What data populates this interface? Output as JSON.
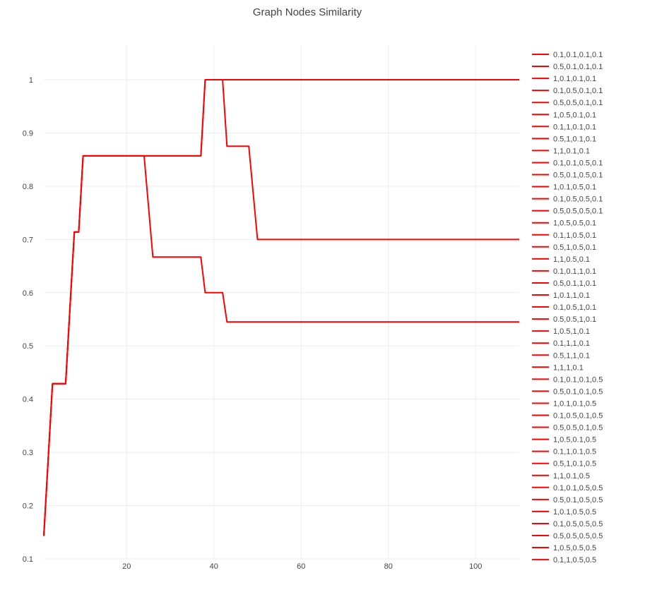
{
  "chart_data": {
    "type": "line",
    "title": "Graph Nodes Similarity",
    "xlabel": "",
    "ylabel": "",
    "xlim": [
      1,
      110
    ],
    "ylim": [
      0.1,
      1.065
    ],
    "x_ticks": [
      20,
      40,
      60,
      80,
      100
    ],
    "y_ticks": [
      0.1,
      0.2,
      0.3,
      0.4,
      0.5,
      0.6,
      0.7,
      0.8,
      0.9,
      1
    ],
    "y_tick_labels": [
      "0.1",
      "0.2",
      "0.3",
      "0.4",
      "0.5",
      "0.6",
      "0.7",
      "0.8",
      "0.9",
      "1"
    ],
    "grid": true,
    "legend_position": "right",
    "line_color": "#ff0000",
    "series": [
      {
        "name": "0.1,0.1,0.1,0.1",
        "points": [
          [
            1,
            0.143
          ],
          [
            3,
            0.429
          ],
          [
            6,
            0.429
          ],
          [
            7,
            0.571
          ],
          [
            8,
            0.714
          ],
          [
            9,
            0.714
          ],
          [
            10,
            0.857
          ],
          [
            37,
            0.857
          ],
          [
            38,
            1
          ],
          [
            110,
            1
          ]
        ]
      },
      {
        "name": "0.5,0.1,0.1,0.1",
        "points": [
          [
            1,
            0.143
          ],
          [
            3,
            0.429
          ],
          [
            6,
            0.429
          ],
          [
            7,
            0.571
          ],
          [
            8,
            0.714
          ],
          [
            9,
            0.714
          ],
          [
            10,
            0.857
          ],
          [
            37,
            0.857
          ],
          [
            38,
            1
          ],
          [
            42,
            1
          ],
          [
            43,
            0.875
          ],
          [
            48,
            0.875
          ],
          [
            50,
            0.7
          ],
          [
            110,
            0.7
          ]
        ]
      },
      {
        "name": "1,0.1,0.1,0.1",
        "points": [
          [
            1,
            0.143
          ],
          [
            3,
            0.429
          ],
          [
            6,
            0.429
          ],
          [
            7,
            0.571
          ],
          [
            8,
            0.714
          ],
          [
            9,
            0.714
          ],
          [
            10,
            0.857
          ],
          [
            24,
            0.857
          ],
          [
            26,
            0.667
          ],
          [
            37,
            0.667
          ],
          [
            38,
            0.6
          ],
          [
            42,
            0.6
          ],
          [
            43,
            0.545
          ],
          [
            110,
            0.545
          ]
        ]
      },
      {
        "name": "0.1,0.5,0.1,0.1"
      },
      {
        "name": "0.5,0.5,0.1,0.1"
      },
      {
        "name": "1,0.5,0.1,0.1"
      },
      {
        "name": "0.1,1,0.1,0.1"
      },
      {
        "name": "0.5,1,0.1,0.1"
      },
      {
        "name": "1,1,0.1,0.1"
      },
      {
        "name": "0.1,0.1,0.5,0.1"
      },
      {
        "name": "0.5,0.1,0.5,0.1"
      },
      {
        "name": "1,0.1,0.5,0.1"
      },
      {
        "name": "0.1,0.5,0.5,0.1"
      },
      {
        "name": "0.5,0.5,0.5,0.1"
      },
      {
        "name": "1,0.5,0.5,0.1"
      },
      {
        "name": "0.1,1,0.5,0.1"
      },
      {
        "name": "0.5,1,0.5,0.1"
      },
      {
        "name": "1,1,0.5,0.1"
      },
      {
        "name": "0.1,0.1,1,0.1"
      },
      {
        "name": "0.5,0.1,1,0.1"
      },
      {
        "name": "1,0.1,1,0.1"
      },
      {
        "name": "0.1,0.5,1,0.1"
      },
      {
        "name": "0.5,0.5,1,0.1"
      },
      {
        "name": "1,0.5,1,0.1"
      },
      {
        "name": "0.1,1,1,0.1"
      },
      {
        "name": "0.5,1,1,0.1"
      },
      {
        "name": "1,1,1,0.1"
      },
      {
        "name": "0.1,0.1,0.1,0.5"
      },
      {
        "name": "0.5,0.1,0.1,0.5"
      },
      {
        "name": "1,0.1,0.1,0.5"
      },
      {
        "name": "0.1,0.5,0.1,0.5"
      },
      {
        "name": "0.5,0.5,0.1,0.5"
      },
      {
        "name": "1,0.5,0.1,0.5"
      },
      {
        "name": "0.1,1,0.1,0.5"
      },
      {
        "name": "0.5,1,0.1,0.5"
      },
      {
        "name": "1,1,0.1,0.5"
      },
      {
        "name": "0.1,0.1,0.5,0.5"
      },
      {
        "name": "0.5,0.1,0.5,0.5"
      },
      {
        "name": "1,0.1,0.5,0.5"
      },
      {
        "name": "0.1,0.5,0.5,0.5"
      },
      {
        "name": "0.5,0.5,0.5,0.5"
      },
      {
        "name": "1,0.5,0.5,0.5"
      },
      {
        "name": "0.1,1,0.5,0.5"
      }
    ]
  }
}
